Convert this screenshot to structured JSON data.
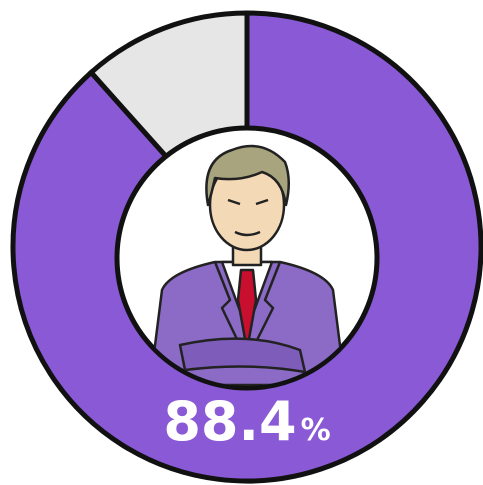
{
  "chart_data": {
    "type": "donut",
    "values": [
      88.4,
      11.6
    ],
    "colors": [
      "#8a5ad6",
      "#e6e6e6"
    ],
    "unit": "%"
  }
}
